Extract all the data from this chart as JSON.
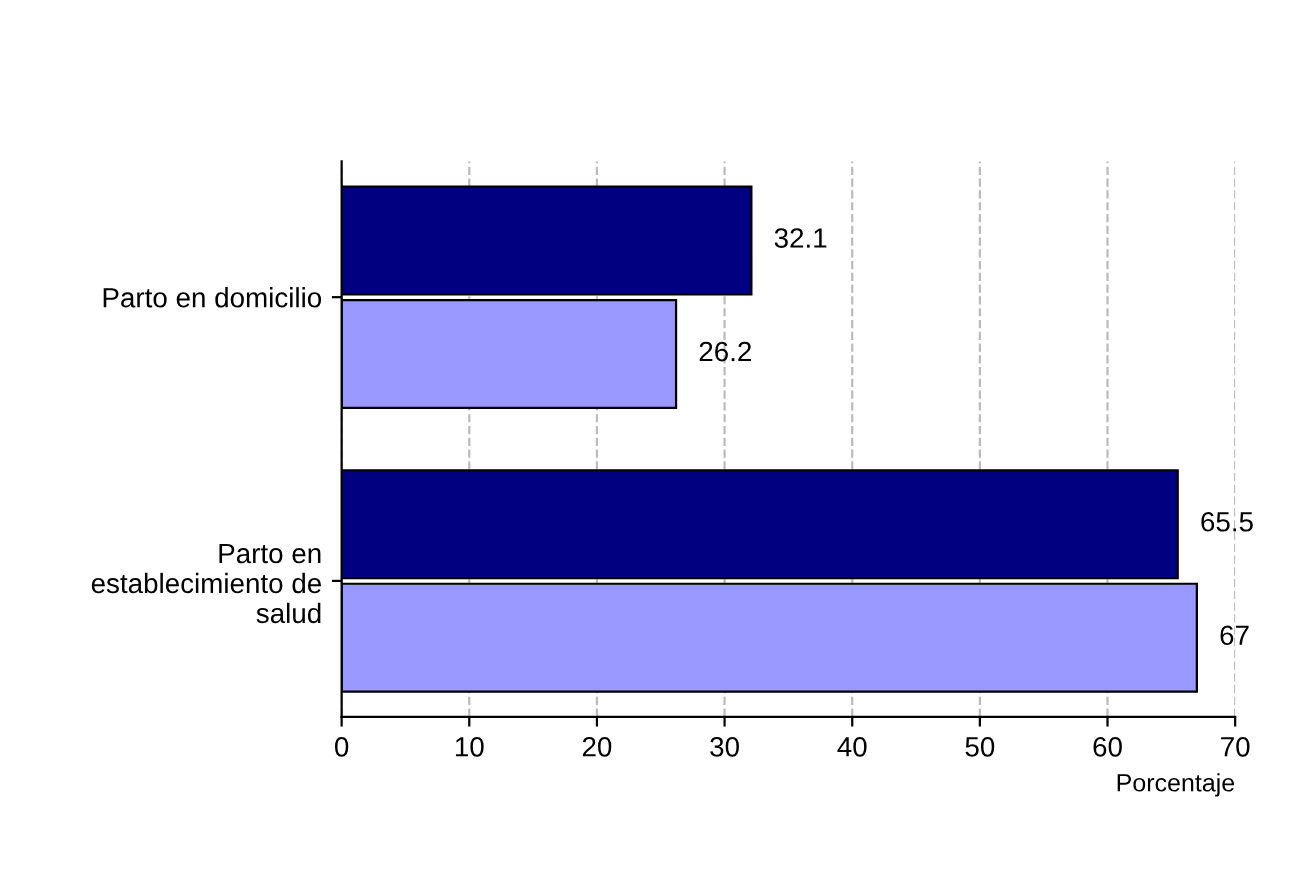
{
  "chart_data": {
    "type": "bar",
    "orientation": "horizontal",
    "categories": [
      "Parto en domicilio",
      "Parto en\nestablecimiento de\nsalud"
    ],
    "series": [
      {
        "color": "#000080",
        "values": [
          32.1,
          65.5
        ]
      },
      {
        "color": "#9999ff",
        "values": [
          26.2,
          67
        ]
      }
    ],
    "xlim": [
      0,
      70
    ],
    "xticks": [
      0,
      10,
      20,
      30,
      40,
      50,
      60,
      70
    ],
    "xlabel": "Porcentaje",
    "grid": "x",
    "data_labels": true,
    "legend": false
  }
}
